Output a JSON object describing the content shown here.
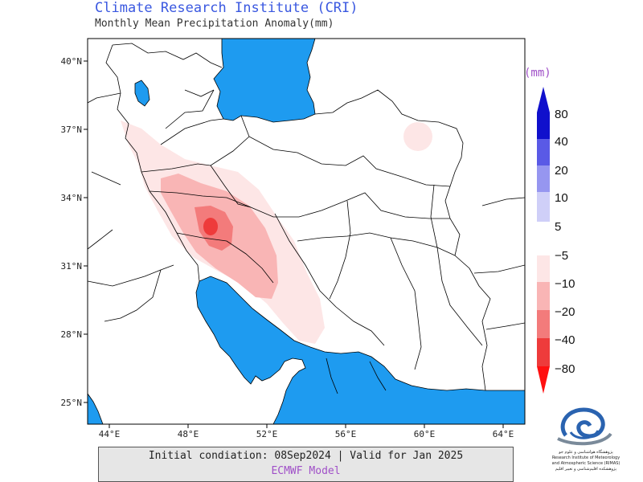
{
  "header": {
    "title": "Climate Research Institute (CRI)",
    "subtitle": "Monthly Mean Precipitation Anomaly(mm)"
  },
  "map": {
    "lat_labels": [
      "40°N",
      "37°N",
      "34°N",
      "31°N",
      "28°N",
      "25°N"
    ],
    "lon_labels": [
      "44°E",
      "48°E",
      "52°E",
      "56°E",
      "60°E",
      "64°E"
    ],
    "water_color": "#1e9bf0",
    "land_color": "#ffffff"
  },
  "legend": {
    "unit": "(mm)",
    "positive": [
      {
        "label": "80",
        "color": "#1010cc"
      },
      {
        "label": "40",
        "color": "#5a5ae6"
      },
      {
        "label": "20",
        "color": "#9696f0"
      },
      {
        "label": "10",
        "color": "#cfcff8"
      },
      {
        "label": "5",
        "color": "#ffffff"
      }
    ],
    "negative": [
      {
        "label": "−5",
        "color": "#fde6e6"
      },
      {
        "label": "−10",
        "color": "#f9b5b5"
      },
      {
        "label": "−20",
        "color": "#f37b7b"
      },
      {
        "label": "−40",
        "color": "#ee3b3b"
      },
      {
        "label": "−80",
        "color": "#ff1010"
      }
    ]
  },
  "footer": {
    "line1": "Initial condiation: 08Sep2024 | Valid for Jan 2025",
    "line2": "ECMWF Model"
  },
  "logo": {
    "text_fa": "پژوهشگاه هواشناسی و علوم جو",
    "text_en1": "Research Institute of Meteorology",
    "text_en2": "and Atmospheric Science (RIMAS)",
    "text_fa2": "پژوهشکده اقلیم‌شناسی و تغییر اقلیم"
  }
}
